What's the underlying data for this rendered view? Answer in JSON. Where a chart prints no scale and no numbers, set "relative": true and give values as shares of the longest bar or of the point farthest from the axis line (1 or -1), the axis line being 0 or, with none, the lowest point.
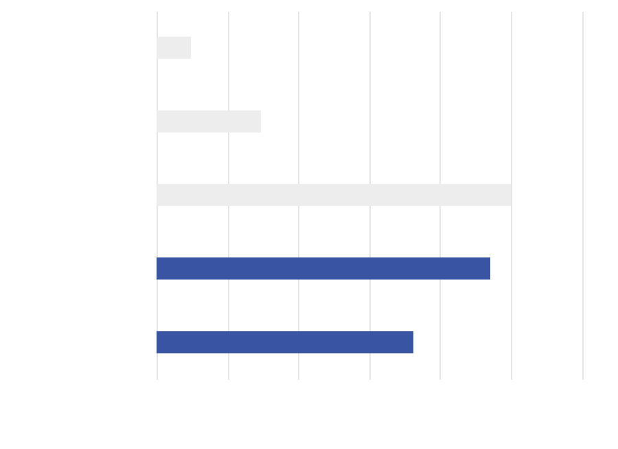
{
  "chart_data": {
    "type": "bar",
    "orientation": "horizontal",
    "relative": true,
    "grid": "x",
    "categories": [
      null,
      null,
      null,
      null,
      null
    ],
    "values": [
      0.097,
      0.295,
      1,
      0.942,
      0.725
    ],
    "colors": [
      "#ededed",
      "#ededed",
      "#ededed",
      "#3a54a4",
      "#3a54a4"
    ]
  }
}
